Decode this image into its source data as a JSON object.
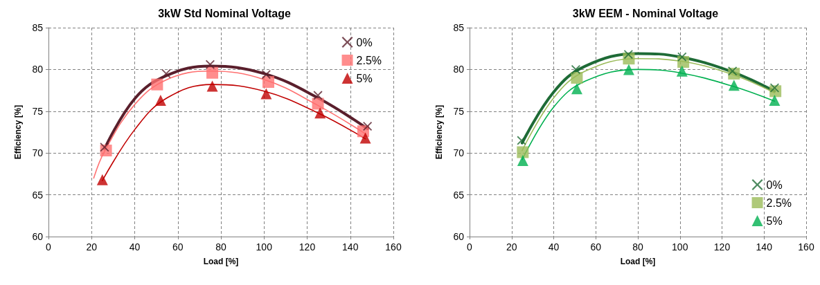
{
  "chart_data": [
    {
      "type": "scatter",
      "title": "3kW Std Nominal Voltage",
      "xlabel": "Load [%]",
      "ylabel": "Efficiency [%]",
      "xlim": [
        0,
        160
      ],
      "xticks": [
        0,
        20,
        40,
        60,
        80,
        100,
        120,
        140,
        160
      ],
      "ylim": [
        60,
        85
      ],
      "yticks": [
        60,
        65,
        70,
        75,
        80,
        85
      ],
      "grid": true,
      "legend": "top right",
      "series": [
        {
          "name": "0%",
          "color": "#5a1f2c",
          "marker": "cross",
          "x": [
            26,
            54.6,
            75,
            101,
            125,
            148
          ],
          "values": [
            70.7,
            79.5,
            80.6,
            79.4,
            76.9,
            73.2
          ]
        },
        {
          "name": "2.5%",
          "color": "#ff7070",
          "marker": "square",
          "x": [
            26.7,
            50.4,
            76,
            102,
            125,
            146
          ],
          "values": [
            70.3,
            78.2,
            79.6,
            78.5,
            75.9,
            72.6
          ]
        },
        {
          "name": "5%",
          "color": "#c00000",
          "marker": "triangle",
          "x": [
            25,
            52,
            76,
            101,
            126,
            147
          ],
          "values": [
            66.8,
            76.3,
            78,
            77.1,
            74.8,
            71.8
          ]
        },
        {
          "type": "line",
          "color": "#5a1f2c",
          "marker": "none",
          "x": [
            26,
            40,
            55,
            75,
            100,
            125,
            148
          ],
          "values": [
            70.5,
            76.5,
            79.3,
            80.4,
            79.5,
            76.6,
            72.9
          ]
        },
        {
          "type": "line",
          "color": "#ff7070",
          "marker": "none",
          "x": [
            21,
            26,
            40,
            55,
            75,
            100,
            125,
            147
          ],
          "values": [
            67,
            70.2,
            75.8,
            78.8,
            79.8,
            78.8,
            75.7,
            72.3
          ]
        },
        {
          "type": "line",
          "color": "#c00000",
          "marker": "none",
          "x": [
            25,
            40,
            55,
            76,
            100,
            125,
            147
          ],
          "values": [
            66.7,
            72.8,
            76.6,
            78.2,
            77.4,
            74.8,
            71.7
          ]
        }
      ]
    },
    {
      "type": "scatter",
      "title": "3kW EEM - Nominal Voltage",
      "xlabel": "Load [%]",
      "ylabel": "Efficiency [%]",
      "xlim": [
        0,
        160
      ],
      "xticks": [
        0,
        20,
        40,
        60,
        80,
        100,
        120,
        140,
        160
      ],
      "ylim": [
        60,
        85
      ],
      "yticks": [
        60,
        65,
        70,
        75,
        80,
        85
      ],
      "grid": true,
      "legend": "bottom right",
      "series": [
        {
          "name": "0%",
          "color": "#1e6b36",
          "marker": "cross",
          "x": [
            24.7,
            50.5,
            75.5,
            101,
            125,
            145
          ],
          "values": [
            71.5,
            80,
            81.8,
            81.5,
            79.8,
            77.8
          ]
        },
        {
          "name": "2.5%",
          "color": "#9bbb59",
          "marker": "square",
          "x": [
            25.3,
            51,
            75.7,
            101.6,
            125.7,
            145.4
          ],
          "values": [
            70.1,
            79,
            81.3,
            80.9,
            79.5,
            77.4
          ]
        },
        {
          "name": "5%",
          "color": "#00b050",
          "marker": "triangle",
          "x": [
            25.3,
            51,
            75.7,
            101,
            125.7,
            145
          ],
          "values": [
            69.1,
            77.7,
            80,
            79.8,
            78.1,
            76.3
          ]
        },
        {
          "type": "line",
          "color": "#1e6b36",
          "marker": "none",
          "x": [
            25,
            40,
            55,
            80,
            100,
            125,
            145
          ],
          "values": [
            71.2,
            77.3,
            80.4,
            81.9,
            81.5,
            79.7,
            77.4
          ]
        },
        {
          "type": "line",
          "color": "#9bbb59",
          "marker": "none",
          "x": [
            25,
            40,
            55,
            80,
            100,
            125,
            145
          ],
          "values": [
            70.3,
            76.6,
            79.8,
            81.3,
            81,
            79.4,
            77.2
          ]
        },
        {
          "type": "line",
          "color": "#00b050",
          "marker": "none",
          "x": [
            25,
            40,
            55,
            80,
            100,
            125,
            145
          ],
          "values": [
            69.2,
            75.5,
            78.6,
            80,
            79.6,
            78,
            76.2
          ]
        }
      ]
    }
  ]
}
